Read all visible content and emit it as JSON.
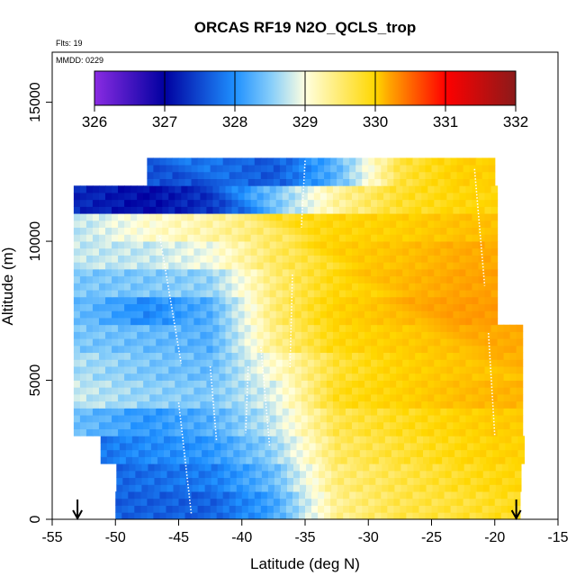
{
  "chart_data": {
    "type": "heatmap",
    "title": "ORCAS RF19 N2O_QCLS_trop",
    "flights_label": "Flts: 19",
    "date_label": "MMDD: 0229",
    "xlabel": "Latitude (deg N)",
    "ylabel": "Altitude (m)",
    "xlim": [
      -55,
      -15
    ],
    "ylim": [
      0,
      16800
    ],
    "x_ticks": [
      -55,
      -50,
      -45,
      -40,
      -35,
      -30,
      -25,
      -20,
      -15
    ],
    "y_ticks": [
      0,
      5000,
      10000,
      15000
    ],
    "colorbar": {
      "min": 326,
      "max": 332,
      "ticks": [
        326,
        327,
        328,
        329,
        330,
        331,
        332
      ],
      "colors": [
        "#8a2be2",
        "#0000a0",
        "#1e90ff",
        "#87cefa",
        "#ffffe0",
        "#ffd700",
        "#ff8c00",
        "#ff0000",
        "#8b1a1a"
      ]
    },
    "arrows_at_latitude": [
      -53,
      -18.3
    ],
    "altitude_levels_m": [
      500,
      1500,
      2500,
      3500,
      4500,
      5500,
      6500,
      7500,
      8500,
      9500,
      10500,
      11500,
      12500
    ],
    "latitude_bins": [
      -52.5,
      -47.5,
      -42.5,
      -37.5,
      -32.5,
      -27.5,
      -22.5,
      -19.5
    ],
    "n2o_ppb": [
      [
        null,
        327.9,
        327.9,
        328.4,
        329.6,
        329.9,
        330.0,
        330.1
      ],
      [
        327.9,
        328.0,
        328.1,
        328.6,
        329.7,
        329.9,
        330.1,
        330.2
      ],
      [
        328.0,
        328.2,
        328.3,
        328.8,
        329.8,
        330.0,
        330.2,
        330.3
      ],
      [
        328.6,
        328.3,
        328.5,
        329.0,
        329.9,
        330.1,
        330.3,
        330.4
      ],
      [
        329.0,
        328.8,
        328.7,
        329.1,
        330.1,
        330.3,
        330.6,
        330.7
      ],
      [
        328.9,
        328.7,
        328.6,
        329.3,
        330.0,
        330.3,
        330.5,
        330.5
      ],
      [
        328.7,
        328.6,
        328.5,
        329.6,
        330.2,
        330.4,
        330.6,
        330.6
      ],
      [
        328.6,
        328.2,
        328.5,
        329.7,
        330.3,
        330.6,
        330.8,
        null
      ],
      [
        328.7,
        328.7,
        328.8,
        329.7,
        330.2,
        330.4,
        330.7,
        null
      ],
      [
        329.0,
        329.0,
        329.2,
        329.8,
        330.1,
        330.3,
        330.6,
        null
      ],
      [
        329.0,
        329.3,
        329.5,
        329.8,
        330.0,
        330.1,
        330.3,
        null
      ],
      [
        327.5,
        327.3,
        327.6,
        328.4,
        329.3,
        329.8,
        330.0,
        null
      ],
      [
        null,
        null,
        327.8,
        327.6,
        328.3,
        329.7,
        330.1,
        null
      ]
    ]
  }
}
